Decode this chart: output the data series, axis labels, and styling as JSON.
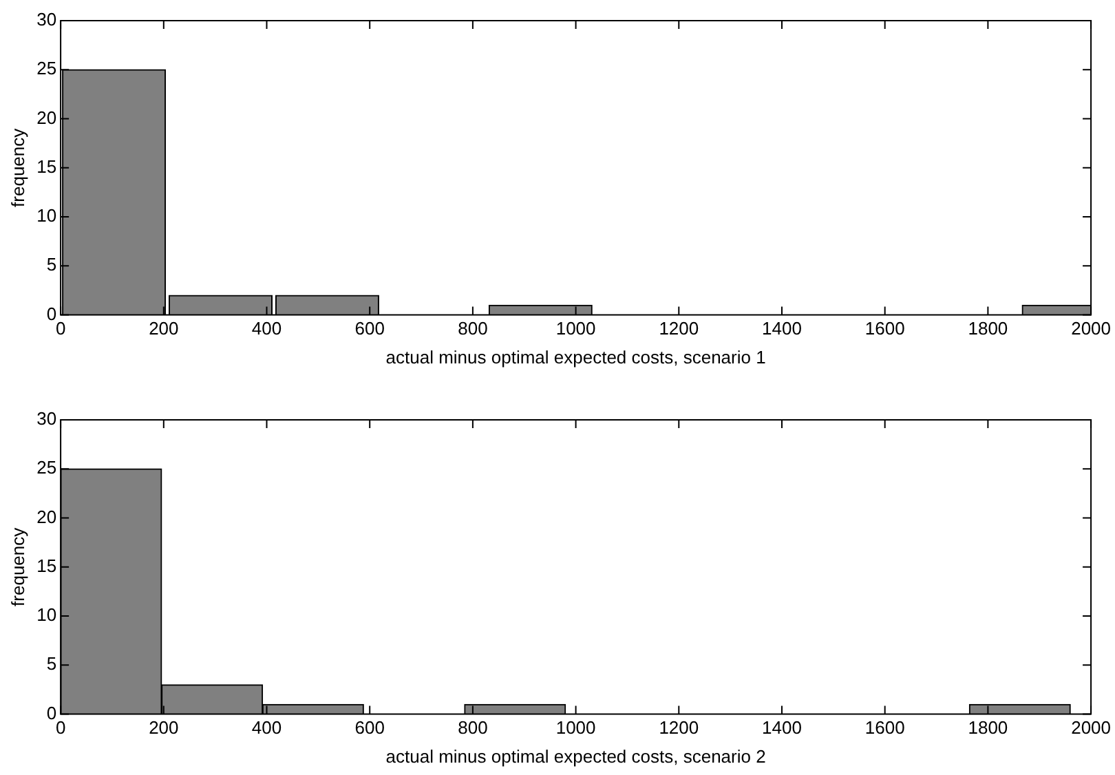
{
  "chart_data": [
    {
      "type": "histogram",
      "xlabel": "actual minus optimal expected costs, scenario 1",
      "ylabel": "frequency",
      "bins": [
        0,
        207,
        414,
        621,
        828,
        1035,
        1242,
        1449,
        1656,
        1863,
        2070
      ],
      "values": [
        25,
        2,
        2,
        0,
        1,
        0,
        0,
        0,
        0,
        1
      ],
      "color": "#808080",
      "xlim": [
        0,
        2000
      ],
      "xticks": [
        0,
        200,
        400,
        600,
        800,
        1000,
        1200,
        1400,
        1600,
        1800,
        2000
      ],
      "ylim": [
        0,
        30
      ],
      "yticks": [
        0,
        5,
        10,
        15,
        20,
        25,
        30
      ],
      "grid": false,
      "legend": false
    },
    {
      "type": "histogram",
      "xlabel": "actual minus optimal expected costs, scenario 2",
      "ylabel": "frequency",
      "bins": [
        0,
        196,
        392,
        588,
        784,
        980,
        1176,
        1372,
        1568,
        1764,
        1960
      ],
      "values": [
        25,
        3,
        1,
        0,
        1,
        0,
        0,
        0,
        0,
        1
      ],
      "color": "#808080",
      "xlim": [
        0,
        2000
      ],
      "xticks": [
        0,
        200,
        400,
        600,
        800,
        1000,
        1200,
        1400,
        1600,
        1800,
        2000
      ],
      "ylim": [
        0,
        30
      ],
      "yticks": [
        0,
        5,
        10,
        15,
        20,
        25,
        30
      ],
      "grid": false,
      "legend": false
    }
  ]
}
